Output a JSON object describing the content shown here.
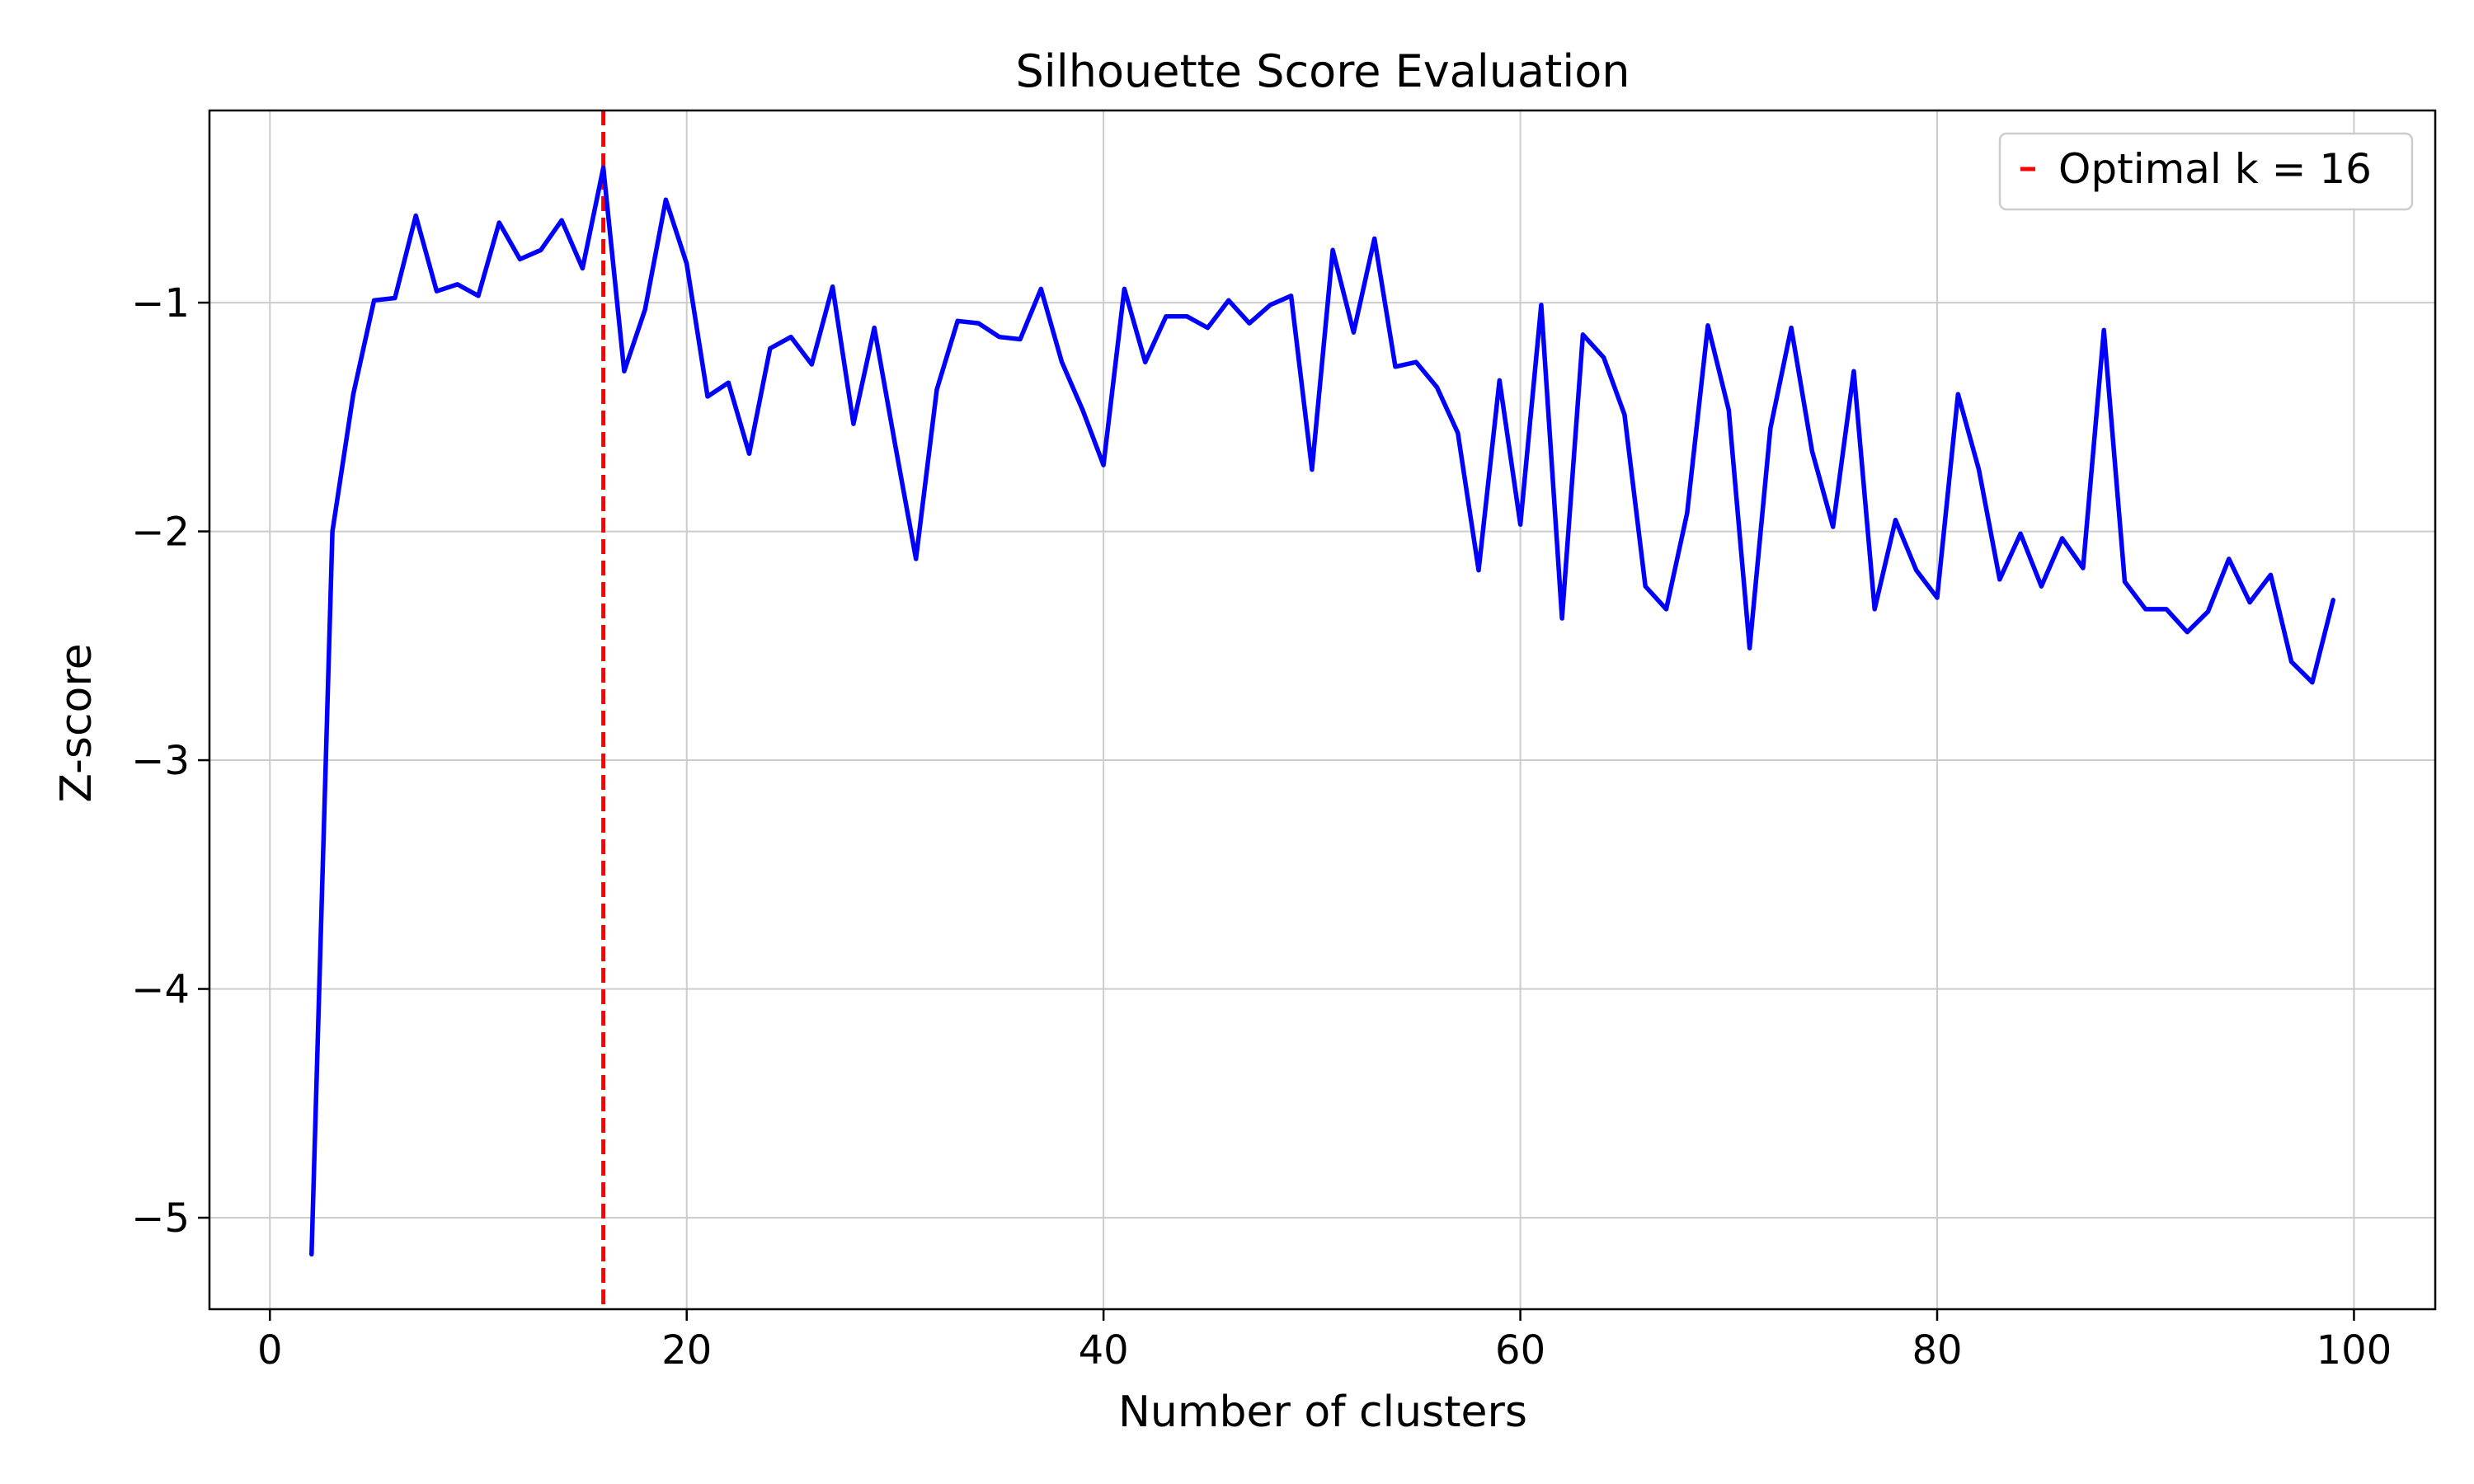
{
  "chart_data": {
    "type": "line",
    "title": "Silhouette Score Evaluation",
    "xlabel": "Number of clusters",
    "ylabel": "Z-score",
    "xlim": [
      -2.9,
      103.9
    ],
    "ylim": [
      -5.4,
      -0.16
    ],
    "xticks": [
      0,
      20,
      40,
      60,
      80,
      100
    ],
    "yticks": [
      -5,
      -4,
      -3,
      -2,
      -1
    ],
    "grid": true,
    "legend_position": "top-right",
    "colors": {
      "series": "#0000ff",
      "optimal": "#ff0000",
      "grid": "#cccccc"
    },
    "series": [
      {
        "x": [
          2,
          3,
          4,
          5,
          6,
          7,
          8,
          9,
          10,
          11,
          12,
          13,
          14,
          15,
          16,
          17,
          18,
          19,
          20,
          21,
          22,
          23,
          24,
          25,
          26,
          27,
          28,
          29,
          30,
          31,
          32,
          33,
          34,
          35,
          36,
          37,
          38,
          39,
          40,
          41,
          42,
          43,
          44,
          45,
          46,
          47,
          48,
          49,
          50,
          51,
          52,
          53,
          54,
          55,
          56,
          57,
          58,
          59,
          60,
          61,
          62,
          63,
          64,
          65,
          66,
          67,
          68,
          69,
          70,
          71,
          72,
          73,
          74,
          75,
          76,
          77,
          78,
          79,
          80,
          81,
          82,
          83,
          84,
          85,
          86,
          87,
          88,
          89,
          90,
          91,
          92,
          93,
          94,
          95,
          96,
          97,
          98,
          99
        ],
        "values": [
          -5.16,
          -2.0,
          -1.4,
          -0.99,
          -0.98,
          -0.62,
          -0.95,
          -0.92,
          -0.97,
          -0.65,
          -0.81,
          -0.77,
          -0.64,
          -0.85,
          -0.41,
          -1.3,
          -1.03,
          -0.55,
          -0.83,
          -1.41,
          -1.35,
          -1.66,
          -1.2,
          -1.15,
          -1.27,
          -0.93,
          -1.53,
          -1.11,
          -1.62,
          -2.12,
          -1.38,
          -1.08,
          -1.09,
          -1.15,
          -1.16,
          -0.94,
          -1.26,
          -1.47,
          -1.71,
          -0.94,
          -1.26,
          -1.06,
          -1.06,
          -1.11,
          -0.99,
          -1.09,
          -1.01,
          -0.97,
          -1.73,
          -0.77,
          -1.13,
          -0.72,
          -1.28,
          -1.26,
          -1.37,
          -1.57,
          -2.17,
          -1.34,
          -1.97,
          -1.01,
          -2.38,
          -1.14,
          -1.24,
          -1.49,
          -2.24,
          -2.34,
          -1.92,
          -1.1,
          -1.47,
          -2.51,
          -1.55,
          -1.11,
          -1.65,
          -1.98,
          -1.3,
          -2.34,
          -1.95,
          -2.17,
          -2.29,
          -1.4,
          -1.73,
          -2.21,
          -2.01,
          -2.24,
          -2.03,
          -2.16,
          -1.12,
          -2.22,
          -2.34,
          -2.34,
          -2.44,
          -2.35,
          -2.12,
          -2.31,
          -2.19,
          -2.57,
          -2.66,
          -2.3
        ]
      }
    ],
    "reference_line": {
      "x": 16,
      "label": "Optimal k = 16"
    }
  }
}
